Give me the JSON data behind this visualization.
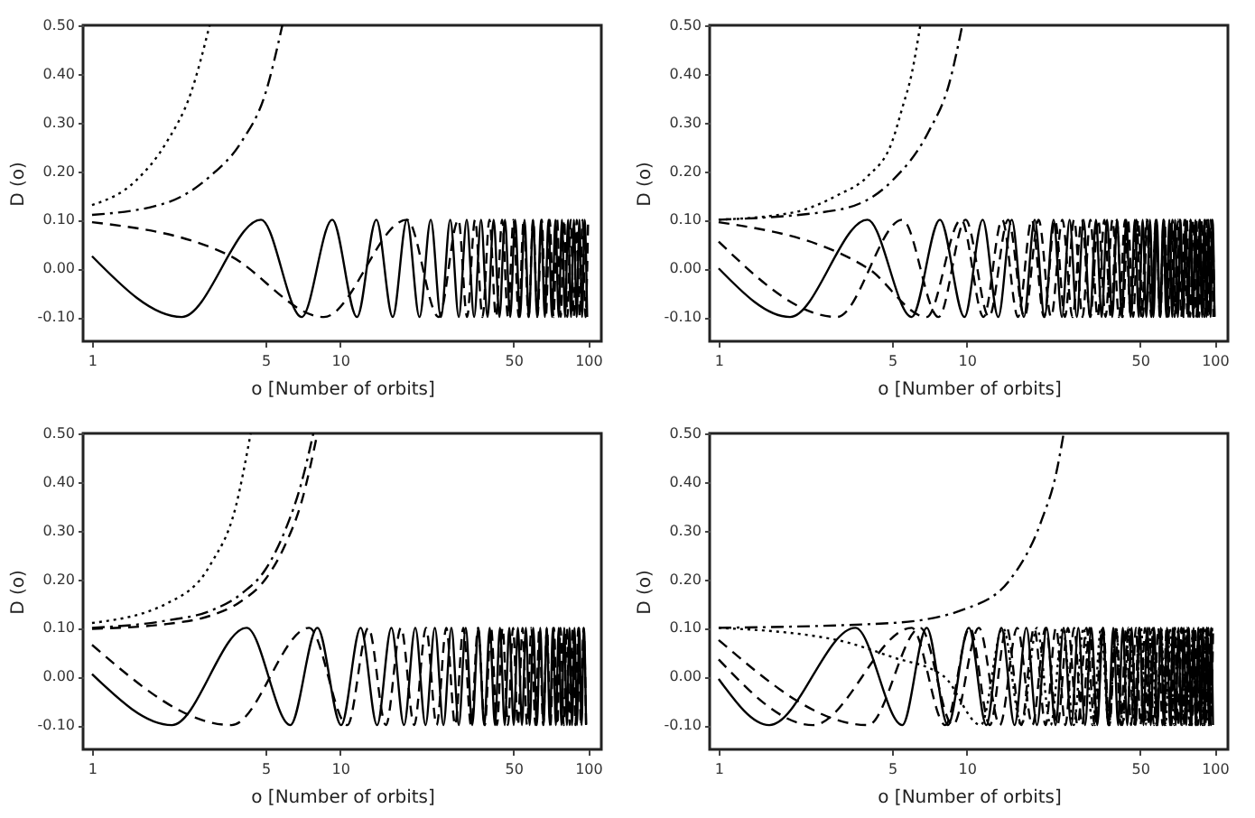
{
  "chart_data": [
    {
      "type": "line",
      "xlabel": "o [Number of orbits]",
      "ylabel": "D (o)",
      "log": "x",
      "xlim": [
        0.92,
        113
      ],
      "ylim": [
        -0.15,
        0.5
      ],
      "xticks": [
        1,
        5,
        10,
        50,
        100
      ],
      "yticks": [
        {
          "value": -0.1,
          "label": "-0.10"
        },
        {
          "value": 0,
          "label": "0.00"
        },
        {
          "value": 0.1,
          "label": "0.10"
        },
        {
          "value": 0.2,
          "label": "0.20"
        },
        {
          "value": 0.3,
          "label": "0.30"
        },
        {
          "value": 0.4,
          "label": "0.40"
        },
        {
          "value": 0.5,
          "label": "0.50"
        }
      ],
      "series": [
        {
          "color": "#000000",
          "line_style": "solid",
          "x": [
            1,
            2.3,
            4.8,
            7,
            9.3,
            11.7,
            14,
            16.3,
            18.6,
            20.9,
            23.2,
            25.5,
            27.8,
            30.1,
            32.4,
            34.7,
            37,
            39.3,
            41.6,
            43.9,
            46.2,
            48.5,
            50.8,
            53.1,
            55.4,
            57.7,
            60,
            62.3,
            64.6,
            66.9,
            69.2,
            71.5,
            73.8,
            76.1,
            78.4,
            80.7,
            83,
            85.3,
            87.6,
            89.9,
            92.2,
            94.5,
            96.8,
            99.1
          ],
          "values": [
            0.025,
            -0.1,
            0.1,
            -0.1,
            0.1,
            -0.1,
            0.1,
            -0.1,
            0.1,
            -0.1,
            0.1,
            -0.1,
            0.1,
            -0.1,
            0.1,
            -0.1,
            0.1,
            -0.1,
            0.1,
            -0.1,
            0.1,
            -0.1,
            0.1,
            -0.1,
            0.1,
            -0.1,
            0.1,
            -0.1,
            0.1,
            -0.1,
            0.1,
            -0.1,
            0.1,
            -0.1,
            0.1,
            -0.1,
            0.1,
            -0.1,
            0.1,
            -0.1,
            0.1,
            -0.1,
            0.1,
            -0.1
          ]
        },
        {
          "color": "#000000",
          "line_style": "dashed",
          "x": [
            1,
            3.56,
            8.6,
            18.6,
            25,
            30,
            32.5,
            35,
            37.5,
            40,
            42.5,
            45,
            47.5,
            50,
            52.5,
            55,
            57.5,
            60,
            62.5,
            65,
            67.5,
            70,
            72.5,
            75,
            77.5,
            80,
            82.5,
            85,
            87.5,
            90,
            92.5,
            95,
            97.5,
            100
          ],
          "values": [
            0.095,
            0.027,
            -0.1,
            0.1,
            -0.1,
            0.1,
            -0.1,
            0.1,
            -0.1,
            0.1,
            -0.1,
            0.1,
            -0.1,
            0.1,
            -0.1,
            0.1,
            -0.1,
            0.1,
            -0.1,
            0.1,
            -0.1,
            0.1,
            -0.1,
            0.1,
            -0.1,
            0.1,
            -0.1,
            0.1,
            -0.1,
            0.1,
            -0.1,
            0.1,
            -0.1,
            0.1
          ]
        },
        {
          "color": "#000000",
          "line_style": "dashdot",
          "x": [
            1,
            2,
            3,
            4,
            5,
            5.85
          ],
          "values": [
            0.11,
            0.135,
            0.19,
            0.26,
            0.36,
            0.5
          ]
        },
        {
          "color": "#000000",
          "line_style": "dotted",
          "x": [
            1,
            1.5,
            2,
            2.5,
            2.98
          ],
          "values": [
            0.13,
            0.18,
            0.26,
            0.36,
            0.5
          ]
        }
      ]
    },
    {
      "type": "line",
      "xlabel": "o [Number of orbits]",
      "ylabel": "D (o)",
      "log": "x",
      "xlim": [
        0.92,
        113
      ],
      "ylim": [
        -0.15,
        0.5
      ],
      "xticks": [
        1,
        5,
        10,
        50,
        100
      ],
      "yticks": [
        {
          "value": -0.1,
          "label": "-0.10"
        },
        {
          "value": 0,
          "label": "0.00"
        },
        {
          "value": 0.1,
          "label": "0.10"
        },
        {
          "value": 0.2,
          "label": "0.20"
        },
        {
          "value": 0.3,
          "label": "0.30"
        },
        {
          "value": 0.4,
          "label": "0.40"
        },
        {
          "value": 0.5,
          "label": "0.50"
        }
      ],
      "series": [
        {
          "color": "#000000",
          "line_style": "solid",
          "x": [
            1,
            1.94,
            3.98,
            6,
            7.8,
            9.8,
            11.6,
            13.4,
            15.2,
            17,
            18.8,
            20.6,
            22.4,
            24.2,
            26,
            27.8,
            29.6,
            31.4,
            33.2,
            35,
            36.8,
            38.6,
            40.4,
            42.2,
            44,
            45.8,
            47.6,
            49.4,
            51.2,
            53,
            54.8,
            56.6,
            58.4,
            60.2,
            62,
            63.8,
            65.6,
            67.4,
            69.2,
            71,
            72.8,
            74.6,
            76.4,
            78.2,
            80,
            81.8,
            83.6,
            85.4,
            87.2,
            89,
            90.8,
            92.6,
            94.4,
            96.2,
            98,
            99.8
          ],
          "values": [
            0,
            -0.1,
            0.1,
            -0.1,
            0.1,
            -0.1,
            0.1,
            -0.1,
            0.1,
            -0.1,
            0.1,
            -0.1,
            0.1,
            -0.1,
            0.1,
            -0.1,
            0.1,
            -0.1,
            0.1,
            -0.1,
            0.1,
            -0.1,
            0.1,
            -0.1,
            0.1,
            -0.1,
            0.1,
            -0.1,
            0.1,
            -0.1,
            0.1,
            -0.1,
            0.1,
            -0.1,
            0.1,
            -0.1,
            0.1,
            -0.1,
            0.1,
            -0.1,
            0.1,
            -0.1,
            0.1,
            -0.1,
            0.1,
            -0.1,
            0.1,
            -0.1,
            0.1,
            -0.1,
            0.1,
            -0.1,
            0.1,
            -0.1,
            0.1,
            -0.1
          ]
        },
        {
          "color": "#000000",
          "line_style": "dashed",
          "x": [
            1,
            4,
            6.9,
            9.5,
            11.7,
            13.9,
            16.1,
            18.3,
            20.5,
            22.7,
            24.9,
            27.1,
            29.3,
            31.5,
            33.7,
            35.9,
            38.1,
            40.3,
            42.5,
            44.7,
            46.9,
            49.1,
            51.3,
            53.5,
            55.7,
            57.9,
            60.1,
            62.3,
            64.5,
            66.7,
            68.9,
            71.1,
            73.3,
            75.5,
            77.7,
            79.9,
            82.1,
            84.3,
            86.5,
            88.7,
            90.9,
            93.1,
            95.3,
            97.5,
            99.7
          ],
          "values": [
            0.095,
            0,
            -0.1,
            0.1,
            -0.1,
            0.1,
            -0.1,
            0.1,
            -0.1,
            0.1,
            -0.1,
            0.1,
            -0.1,
            0.1,
            -0.1,
            0.1,
            -0.1,
            0.1,
            -0.1,
            0.1,
            -0.1,
            0.1,
            -0.1,
            0.1,
            -0.1,
            0.1,
            -0.1,
            0.1,
            -0.1,
            0.1,
            -0.1,
            0.1,
            -0.1,
            0.1,
            -0.1,
            0.1,
            -0.1,
            0.1,
            -0.1,
            0.1,
            -0.1,
            0.1,
            -0.1,
            0.1,
            -0.1
          ]
        },
        {
          "color": "#000000",
          "line_style": "dashed",
          "x": [
            1,
            3,
            5.5,
            7.7,
            9.9,
            12.3,
            14.7,
            17.1,
            19.5,
            21.9,
            24.3,
            26.7,
            29.1,
            31.5,
            33.9,
            36.3,
            38.7,
            41.1,
            43.5,
            45.9,
            48.3,
            50.7,
            53.1,
            55.5,
            57.9,
            60.3,
            62.7,
            65.1,
            67.5,
            69.9,
            72.3,
            74.7,
            77.1,
            79.5,
            81.9,
            84.3,
            86.7,
            89.1,
            91.5,
            93.9,
            96.3,
            98.7
          ],
          "values": [
            0.055,
            -0.1,
            0.1,
            -0.1,
            0.1,
            -0.1,
            0.1,
            -0.1,
            0.1,
            -0.1,
            0.1,
            -0.1,
            0.1,
            -0.1,
            0.1,
            -0.1,
            0.1,
            -0.1,
            0.1,
            -0.1,
            0.1,
            -0.1,
            0.1,
            -0.1,
            0.1,
            -0.1,
            0.1,
            -0.1,
            0.1,
            -0.1,
            0.1,
            -0.1,
            0.1,
            -0.1,
            0.1,
            -0.1,
            0.1,
            -0.1,
            0.1,
            -0.1,
            0.1,
            -0.1
          ]
        },
        {
          "color": "#000000",
          "line_style": "dotted",
          "x": [
            1,
            2,
            3,
            4,
            5,
            5.5,
            6,
            6.5
          ],
          "values": [
            0.1,
            0.115,
            0.15,
            0.19,
            0.26,
            0.33,
            0.4,
            0.5
          ]
        },
        {
          "color": "#000000",
          "line_style": "dashdot",
          "x": [
            1,
            3,
            5,
            7,
            8.5,
            9.6
          ],
          "values": [
            0.1,
            0.12,
            0.18,
            0.28,
            0.38,
            0.5
          ]
        }
      ]
    },
    {
      "type": "line",
      "xlabel": "o [Number of orbits]",
      "ylabel": "D (o)",
      "log": "x",
      "xlim": [
        0.92,
        113
      ],
      "ylim": [
        -0.15,
        0.5
      ],
      "xticks": [
        1,
        5,
        10,
        50,
        100
      ],
      "yticks": [
        {
          "value": -0.1,
          "label": "-0.10"
        },
        {
          "value": 0,
          "label": "0.00"
        },
        {
          "value": 0.1,
          "label": "0.10"
        },
        {
          "value": 0.2,
          "label": "0.20"
        },
        {
          "value": 0.3,
          "label": "0.30"
        },
        {
          "value": 0.4,
          "label": "0.40"
        },
        {
          "value": 0.5,
          "label": "0.50"
        }
      ],
      "series": [
        {
          "color": "#000000",
          "line_style": "solid",
          "x": [
            1,
            2.1,
            4.2,
            6.3,
            8.1,
            10.1,
            12.1,
            14.1,
            16.1,
            18.1,
            20.1,
            22.1,
            24.1,
            26.1,
            28.1,
            30.1,
            32.1,
            34.1,
            36.1,
            38.1,
            40.1,
            42.1,
            44.1,
            46.1,
            48.1,
            50.1,
            52.1,
            54.1,
            56.1,
            58.1,
            60.1,
            62.1,
            64.1,
            66.1,
            68.1,
            70.1,
            72.1,
            74.1,
            76.1,
            78.1,
            80.1,
            82.1,
            84.1,
            86.1,
            88.1,
            90.1,
            92.1,
            94.1,
            96.1,
            98.1
          ],
          "values": [
            0.005,
            -0.1,
            0.1,
            -0.1,
            0.1,
            -0.1,
            0.1,
            -0.1,
            0.1,
            -0.1,
            0.1,
            -0.1,
            0.1,
            -0.1,
            0.1,
            -0.1,
            0.1,
            -0.1,
            0.1,
            -0.1,
            0.1,
            -0.1,
            0.1,
            -0.1,
            0.1,
            -0.1,
            0.1,
            -0.1,
            0.1,
            -0.1,
            0.1,
            -0.1,
            0.1,
            -0.1,
            0.1,
            -0.1,
            0.1,
            -0.1,
            0.1,
            -0.1,
            0.1,
            -0.1,
            0.1,
            -0.1,
            0.1,
            -0.1,
            0.1,
            -0.1,
            0.1,
            -0.1
          ]
        },
        {
          "color": "#000000",
          "line_style": "dashed",
          "x": [
            1,
            3.65,
            7.5,
            10.7,
            13,
            15.3,
            17.6,
            19.9,
            22.2,
            24.5,
            26.8,
            29.1,
            31.4,
            33.7,
            36,
            38.3,
            40.6,
            42.9,
            45.2,
            47.5,
            49.8,
            52.1,
            54.4,
            56.7,
            59,
            61.3,
            63.6,
            65.9,
            68.2,
            70.5,
            72.8,
            75.1,
            77.4,
            79.7,
            82,
            84.3,
            86.6,
            88.9,
            91.2,
            93.5,
            95.8,
            98.1
          ],
          "values": [
            0.065,
            -0.1,
            0.1,
            -0.1,
            0.1,
            -0.1,
            0.1,
            -0.1,
            0.1,
            -0.1,
            0.1,
            -0.1,
            0.1,
            -0.1,
            0.1,
            -0.1,
            0.1,
            -0.1,
            0.1,
            -0.1,
            0.1,
            -0.1,
            0.1,
            -0.1,
            0.1,
            -0.1,
            0.1,
            -0.1,
            0.1,
            -0.1,
            0.1,
            -0.1,
            0.1,
            -0.1,
            0.1,
            -0.1,
            0.1,
            -0.1,
            0.1,
            -0.1,
            0.1,
            -0.1
          ]
        },
        {
          "color": "#000000",
          "line_style": "dotted",
          "x": [
            1,
            2,
            3,
            3.8,
            4.36
          ],
          "values": [
            0.11,
            0.15,
            0.23,
            0.35,
            0.5
          ]
        },
        {
          "color": "#000000",
          "line_style": "dashdot",
          "x": [
            1,
            2,
            3,
            4,
            5,
            6,
            7,
            7.8
          ],
          "values": [
            0.1,
            0.115,
            0.135,
            0.17,
            0.22,
            0.3,
            0.4,
            0.5
          ]
        },
        {
          "color": "#000000",
          "line_style": "dashed",
          "x": [
            1,
            2,
            3,
            4,
            5,
            6,
            7,
            8.1
          ],
          "values": [
            0.098,
            0.108,
            0.125,
            0.155,
            0.2,
            0.27,
            0.36,
            0.5
          ]
        }
      ]
    },
    {
      "type": "line",
      "xlabel": "o [Number of orbits]",
      "ylabel": "D (o)",
      "log": "x",
      "xlim": [
        0.92,
        113
      ],
      "ylim": [
        -0.15,
        0.5
      ],
      "xticks": [
        1,
        5,
        10,
        50,
        100
      ],
      "yticks": [
        {
          "value": -0.1,
          "label": "-0.10"
        },
        {
          "value": 0,
          "label": "0.00"
        },
        {
          "value": 0.1,
          "label": "0.10"
        },
        {
          "value": 0.2,
          "label": "0.20"
        },
        {
          "value": 0.3,
          "label": "0.30"
        },
        {
          "value": 0.4,
          "label": "0.40"
        },
        {
          "value": 0.5,
          "label": "0.50"
        }
      ],
      "series": [
        {
          "color": "#000000",
          "line_style": "solid",
          "x": [
            1,
            1.6,
            3.56,
            5.5,
            6.9,
            8.4,
            10.2,
            12,
            13.8,
            15.6,
            17.4,
            19.2,
            21,
            22.8,
            24.6,
            26.4,
            28.2,
            30,
            31.8,
            33.6,
            35.4,
            37.2,
            39,
            40.8,
            42.6,
            44.4,
            46.2,
            48,
            49.8,
            51.6,
            53.4,
            55.2,
            57,
            58.8,
            60.6,
            62.4,
            64.2,
            66,
            67.8,
            69.6,
            71.4,
            73.2,
            75,
            76.8,
            78.6,
            80.4,
            82.2,
            84,
            85.8,
            87.6,
            89.4,
            91.2,
            93,
            94.8,
            96.6,
            98.4
          ],
          "values": [
            -0.005,
            -0.1,
            0.1,
            -0.1,
            0.1,
            -0.1,
            0.1,
            -0.1,
            0.1,
            -0.1,
            0.1,
            -0.1,
            0.1,
            -0.1,
            0.1,
            -0.1,
            0.1,
            -0.1,
            0.1,
            -0.1,
            0.1,
            -0.1,
            0.1,
            -0.1,
            0.1,
            -0.1,
            0.1,
            -0.1,
            0.1,
            -0.1,
            0.1,
            -0.1,
            0.1,
            -0.1,
            0.1,
            -0.1,
            0.1,
            -0.1,
            0.1,
            -0.1,
            0.1,
            -0.1,
            0.1,
            -0.1,
            0.1,
            -0.1,
            0.1,
            -0.1,
            0.1,
            -0.1,
            0.1,
            -0.1,
            0.1,
            -0.1,
            0.1,
            -0.1
          ]
        },
        {
          "color": "#000000",
          "line_style": "dashed",
          "x": [
            1,
            2.4,
            6,
            8.2,
            10.3,
            12.4,
            14.5,
            16.6,
            18.7,
            20.8,
            22.9,
            25,
            27.1,
            29.2,
            31.3,
            33.4,
            35.5,
            37.6,
            39.7,
            41.8,
            43.9,
            46,
            48.1,
            50.2,
            52.3,
            54.4,
            56.5,
            58.6,
            60.7,
            62.8,
            64.9,
            67,
            69.1,
            71.2,
            73.3,
            75.4,
            77.5,
            79.6,
            81.7,
            83.8,
            85.9,
            88,
            90.1,
            92.2,
            94.3,
            96.4,
            98.5
          ],
          "values": [
            0.035,
            -0.1,
            0.1,
            -0.1,
            0.1,
            -0.1,
            0.1,
            -0.1,
            0.1,
            -0.1,
            0.1,
            -0.1,
            0.1,
            -0.1,
            0.1,
            -0.1,
            0.1,
            -0.1,
            0.1,
            -0.1,
            0.1,
            -0.1,
            0.1,
            -0.1,
            0.1,
            -0.1,
            0.1,
            -0.1,
            0.1,
            -0.1,
            0.1,
            -0.1,
            0.1,
            -0.1,
            0.1,
            -0.1,
            0.1,
            -0.1,
            0.1,
            -0.1,
            0.1,
            -0.1,
            0.1,
            -0.1,
            0.1,
            -0.1,
            0.1
          ]
        },
        {
          "color": "#000000",
          "line_style": "dashed",
          "x": [
            1,
            4,
            6.5,
            8.8,
            11.2,
            13.6,
            16,
            18.4,
            20.8,
            23.2,
            25.6,
            28,
            30.4,
            32.8,
            35.2,
            37.6,
            40,
            42.4,
            44.8,
            47.2,
            49.6,
            52,
            54.4,
            56.8,
            59.2,
            61.6,
            64,
            66.4,
            68.8,
            71.2,
            73.6,
            76,
            78.4,
            80.8,
            83.2,
            85.6,
            88,
            90.4,
            92.8,
            95.2,
            97.6
          ],
          "values": [
            0.075,
            -0.1,
            0.1,
            -0.1,
            0.1,
            -0.1,
            0.1,
            -0.1,
            0.1,
            -0.1,
            0.1,
            -0.1,
            0.1,
            -0.1,
            0.1,
            -0.1,
            0.1,
            -0.1,
            0.1,
            -0.1,
            0.1,
            -0.1,
            0.1,
            -0.1,
            0.1,
            -0.1,
            0.1,
            -0.1,
            0.1,
            -0.1,
            0.1,
            -0.1,
            0.1,
            -0.1,
            0.1,
            -0.1,
            0.1,
            -0.1,
            0.1,
            -0.1,
            0.1
          ]
        },
        {
          "color": "#000000",
          "line_style": "dotted",
          "x": [
            1,
            3,
            5,
            8.1,
            11.4,
            14,
            16.6,
            19.2,
            21.8,
            24.4,
            27,
            29.6,
            32.2,
            34.8,
            37.4,
            40,
            42.6,
            45.2,
            47.8,
            50.4,
            53,
            55.6,
            58.2,
            60.8,
            63.4,
            66,
            68.6,
            71.2,
            73.8,
            76.4,
            79,
            81.6,
            84.2,
            86.8,
            89.4,
            92,
            94.6,
            97.2
          ],
          "values": [
            0.1,
            0.075,
            0.04,
            0,
            -0.1,
            0.1,
            -0.1,
            0.1,
            -0.1,
            0.1,
            -0.1,
            0.1,
            -0.1,
            0.1,
            -0.1,
            0.1,
            -0.1,
            0.1,
            -0.1,
            0.1,
            -0.1,
            0.1,
            -0.1,
            0.1,
            -0.1,
            0.1,
            -0.1,
            0.1,
            -0.1,
            0.1,
            -0.1,
            0.1,
            -0.1,
            0.1,
            -0.1,
            0.1,
            -0.1,
            0.1
          ]
        },
        {
          "color": "#000000",
          "line_style": "dashdot",
          "x": [
            1,
            5,
            10,
            15,
            20,
            23,
            24.6
          ],
          "values": [
            0.1,
            0.11,
            0.14,
            0.2,
            0.32,
            0.42,
            0.5
          ]
        }
      ]
    }
  ]
}
